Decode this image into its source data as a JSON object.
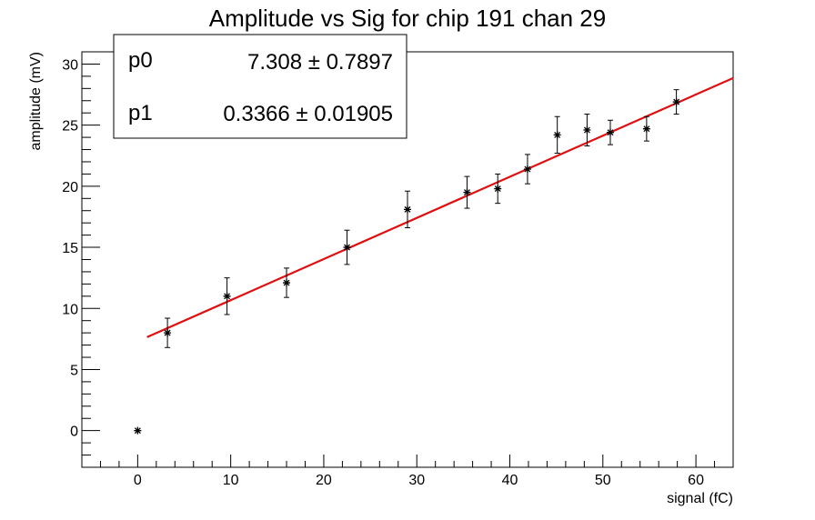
{
  "chart_data": {
    "type": "scatter",
    "title": "Amplitude vs Sig for chip 191 chan 29",
    "xlabel": "signal (fC)",
    "ylabel": "amplitude (mV)",
    "xlim": [
      -6,
      64
    ],
    "ylim": [
      -3,
      31
    ],
    "xticks": [
      0,
      10,
      20,
      30,
      40,
      50,
      60
    ],
    "yticks": [
      0,
      5,
      10,
      15,
      20,
      25,
      30
    ],
    "grid": false,
    "points": [
      {
        "x": 0.0,
        "y": 0.0,
        "err": 0.0
      },
      {
        "x": 3.2,
        "y": 8.0,
        "err": 1.2
      },
      {
        "x": 9.6,
        "y": 11.0,
        "err": 1.5
      },
      {
        "x": 16.0,
        "y": 12.1,
        "err": 1.2
      },
      {
        "x": 22.5,
        "y": 15.0,
        "err": 1.4
      },
      {
        "x": 29.0,
        "y": 18.1,
        "err": 1.5
      },
      {
        "x": 35.4,
        "y": 19.5,
        "err": 1.3
      },
      {
        "x": 38.7,
        "y": 19.8,
        "err": 1.2
      },
      {
        "x": 41.9,
        "y": 21.4,
        "err": 1.2
      },
      {
        "x": 45.1,
        "y": 24.2,
        "err": 1.5
      },
      {
        "x": 48.3,
        "y": 24.6,
        "err": 1.3
      },
      {
        "x": 50.8,
        "y": 24.4,
        "err": 1.0
      },
      {
        "x": 54.7,
        "y": 24.7,
        "err": 1.0
      },
      {
        "x": 57.9,
        "y": 26.9,
        "err": 1.0
      }
    ],
    "fit": {
      "color": "#e01010",
      "x_range": [
        1.0,
        64.0
      ],
      "p0": 7.308,
      "p1": 0.3366
    },
    "stats": {
      "p0_label": "p0",
      "p0_value": "7.308 ± 0.7897",
      "p1_label": "p1",
      "p1_value": "0.3366 ± 0.01905"
    }
  }
}
